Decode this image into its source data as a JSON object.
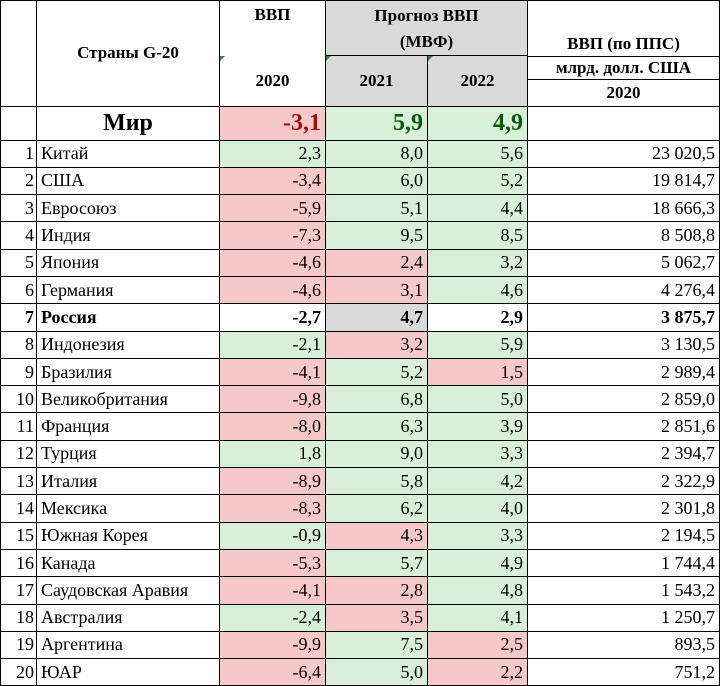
{
  "header": {
    "countries_title": "Страны G-20",
    "gdp_title": "ВВП",
    "gdp_year": "2020",
    "forecast_title": "Прогноз ВВП",
    "forecast_source": "(МВФ)",
    "forecast_year1": "2021",
    "forecast_year2": "2022",
    "ppp_title": "ВВП (по ППС)",
    "ppp_unit": "млрд. долл. США",
    "ppp_year": "2020"
  },
  "world": {
    "label": "Мир",
    "gdp2020": "-3,1",
    "f2021": "5,9",
    "f2022": "4,9"
  },
  "rows": [
    {
      "idx": "1",
      "name": "Китай",
      "gdp2020": "2,3",
      "f2021": "8,0",
      "f2022": "5,6",
      "ppp": "23 020,5"
    },
    {
      "idx": "2",
      "name": "США",
      "gdp2020": "-3,4",
      "f2021": "6,0",
      "f2022": "5,2",
      "ppp": "19 814,7"
    },
    {
      "idx": "3",
      "name": "Евросоюз",
      "gdp2020": "-5,9",
      "f2021": "5,1",
      "f2022": "4,4",
      "ppp": "18 666,3"
    },
    {
      "idx": "4",
      "name": "Индия",
      "gdp2020": "-7,3",
      "f2021": "9,5",
      "f2022": "8,5",
      "ppp": "8 508,8"
    },
    {
      "idx": "5",
      "name": "Япония",
      "gdp2020": "-4,6",
      "f2021": "2,4",
      "f2022": "3,2",
      "ppp": "5 062,7"
    },
    {
      "idx": "6",
      "name": "Германия",
      "gdp2020": "-4,6",
      "f2021": "3,1",
      "f2022": "4,6",
      "ppp": "4 276,4"
    },
    {
      "idx": "7",
      "name": "Россия",
      "gdp2020": "-2,7",
      "f2021": "4,7",
      "f2022": "2,9",
      "ppp": "3 875,7"
    },
    {
      "idx": "8",
      "name": "Индонезия",
      "gdp2020": "-2,1",
      "f2021": "3,2",
      "f2022": "5,9",
      "ppp": "3 130,5"
    },
    {
      "idx": "9",
      "name": "Бразилия",
      "gdp2020": "-4,1",
      "f2021": "5,2",
      "f2022": "1,5",
      "ppp": "2 989,4"
    },
    {
      "idx": "10",
      "name": "Великобритания",
      "gdp2020": "-9,8",
      "f2021": "6,8",
      "f2022": "5,0",
      "ppp": "2 859,0"
    },
    {
      "idx": "11",
      "name": "Франция",
      "gdp2020": "-8,0",
      "f2021": "6,3",
      "f2022": "3,9",
      "ppp": "2 851,6"
    },
    {
      "idx": "12",
      "name": "Турция",
      "gdp2020": "1,8",
      "f2021": "9,0",
      "f2022": "3,3",
      "ppp": "2 394,7"
    },
    {
      "idx": "13",
      "name": "Италия",
      "gdp2020": "-8,9",
      "f2021": "5,8",
      "f2022": "4,2",
      "ppp": "2 322,9"
    },
    {
      "idx": "14",
      "name": "Мексика",
      "gdp2020": "-8,3",
      "f2021": "6,2",
      "f2022": "4,0",
      "ppp": "2 301,8"
    },
    {
      "idx": "15",
      "name": "Южная Корея",
      "gdp2020": "-0,9",
      "f2021": "4,3",
      "f2022": "3,3",
      "ppp": "2 194,5"
    },
    {
      "idx": "16",
      "name": "Канада",
      "gdp2020": "-5,3",
      "f2021": "5,7",
      "f2022": "4,9",
      "ppp": "1 744,4"
    },
    {
      "idx": "17",
      "name": "Саудовская Аравия",
      "gdp2020": "-4,1",
      "f2021": "2,8",
      "f2022": "4,8",
      "ppp": "1 543,2"
    },
    {
      "idx": "18",
      "name": "Австралия",
      "gdp2020": "-2,4",
      "f2021": "3,5",
      "f2022": "4,1",
      "ppp": "1 250,7"
    },
    {
      "idx": "19",
      "name": "Аргентина",
      "gdp2020": "-9,9",
      "f2021": "7,5",
      "f2022": "2,5",
      "ppp": "893,5"
    },
    {
      "idx": "20",
      "name": "ЮАР",
      "gdp2020": "-6,4",
      "f2021": "5,0",
      "f2022": "2,2",
      "ppp": "751,2"
    }
  ],
  "cell_colors": {
    "rows": [
      [
        "pos",
        "pos",
        "pos"
      ],
      [
        "neg",
        "pos",
        "pos"
      ],
      [
        "neg",
        "pos",
        "pos"
      ],
      [
        "neg",
        "pos",
        "pos"
      ],
      [
        "neg",
        "neg",
        "pos"
      ],
      [
        "neg",
        "neg",
        "pos"
      ],
      [
        "none",
        "gray",
        "none"
      ],
      [
        "pos",
        "neg",
        "pos"
      ],
      [
        "neg",
        "pos",
        "neg"
      ],
      [
        "neg",
        "pos",
        "pos"
      ],
      [
        "neg",
        "pos",
        "pos"
      ],
      [
        "pos",
        "pos",
        "pos"
      ],
      [
        "neg",
        "pos",
        "pos"
      ],
      [
        "neg",
        "pos",
        "pos"
      ],
      [
        "pos",
        "neg",
        "pos"
      ],
      [
        "neg",
        "pos",
        "pos"
      ],
      [
        "neg",
        "neg",
        "pos"
      ],
      [
        "pos",
        "neg",
        "pos"
      ],
      [
        "neg",
        "pos",
        "neg"
      ],
      [
        "neg",
        "pos",
        "neg"
      ]
    ],
    "positive": "#d8f0d8",
    "negative": "#f6c8c8",
    "highlight": "#d9d9d9"
  },
  "bold_row_index": 6
}
